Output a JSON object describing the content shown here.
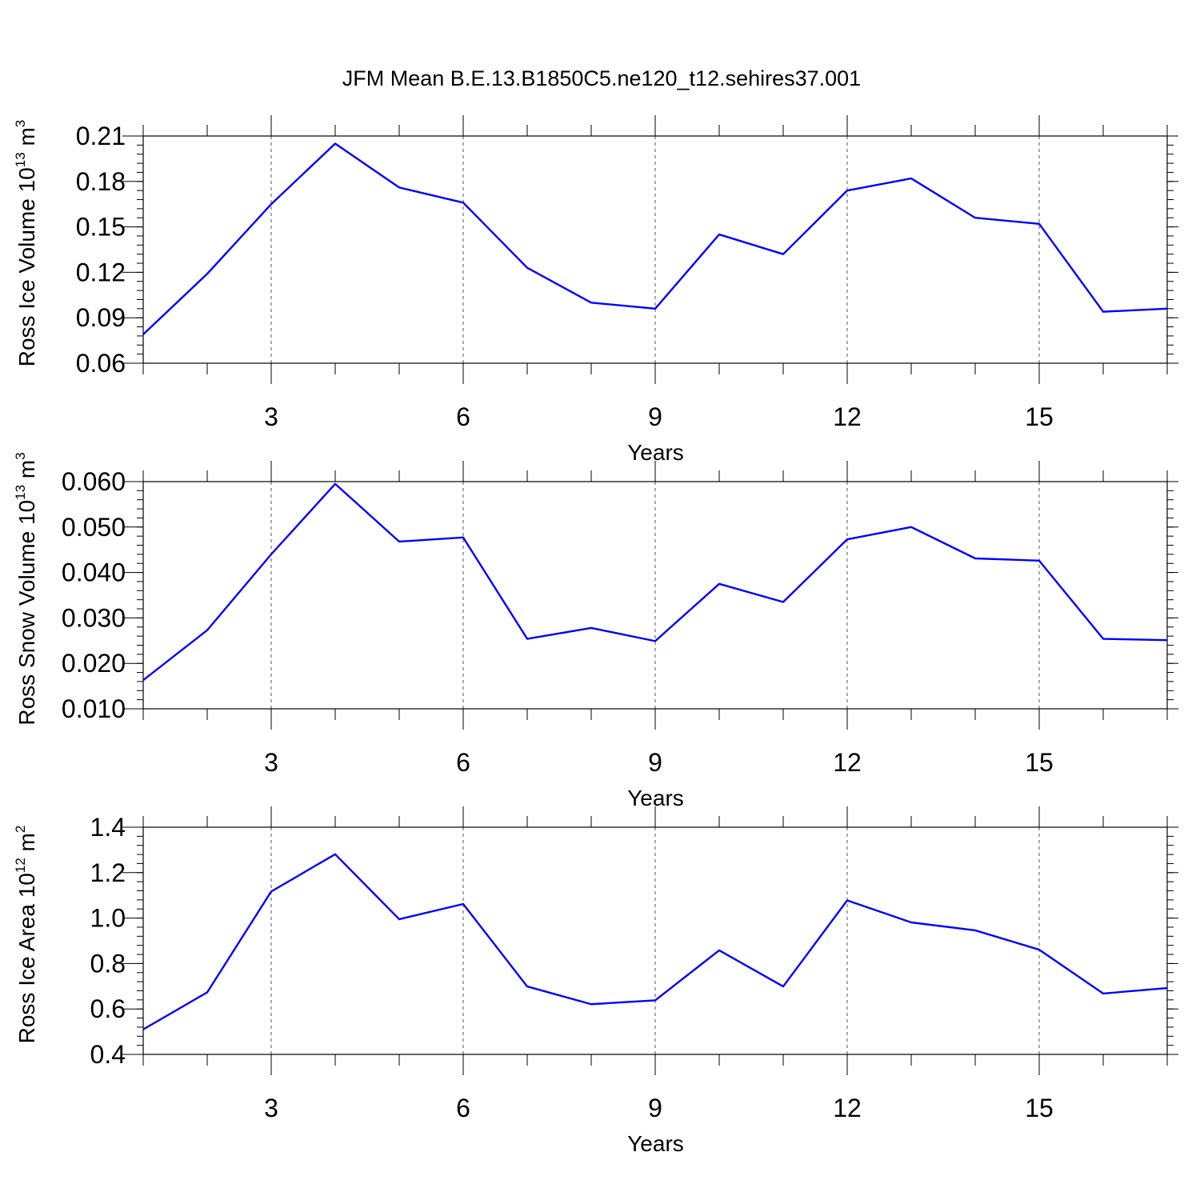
{
  "figure": {
    "title": "JFM Mean B.E.13.B1850C5.ne120_t12.sehires37.001"
  },
  "colors": {
    "line": "#0000ff",
    "axes": "#000000",
    "grid": "#555555",
    "background": "#ffffff"
  },
  "chart_data": [
    {
      "type": "line",
      "ylabel_main": "Ross Ice Volume 10",
      "ylabel_exp": "13",
      "ylabel_unit": " m",
      "ylabel_unit_exp": "3",
      "xlabel": "Years",
      "xlim": [
        1,
        17
      ],
      "ylim": [
        0.06,
        0.21
      ],
      "xticks": [
        3,
        6,
        9,
        12,
        15
      ],
      "xtick_labels": [
        "3",
        "6",
        "9",
        "12",
        "15"
      ],
      "yticks": [
        0.06,
        0.09,
        0.12,
        0.15,
        0.18,
        0.21
      ],
      "ytick_labels": [
        "0.06",
        "0.09",
        "0.12",
        "0.15",
        "0.18",
        "0.21"
      ],
      "y_minor_step": 0.006,
      "grid": "vertical dashed at major x ticks",
      "series": [
        {
          "name": "Ross Ice Volume",
          "x": [
            1,
            2,
            3,
            4,
            5,
            6,
            7,
            8,
            9,
            10,
            11,
            12,
            13,
            14,
            15,
            16,
            17
          ],
          "values": [
            0.079,
            0.119,
            0.165,
            0.205,
            0.176,
            0.166,
            0.123,
            0.1,
            0.096,
            0.145,
            0.132,
            0.174,
            0.182,
            0.156,
            0.152,
            0.094,
            0.096
          ]
        }
      ]
    },
    {
      "type": "line",
      "ylabel_main": "Ross Snow Volume 10",
      "ylabel_exp": "13",
      "ylabel_unit": " m",
      "ylabel_unit_exp": "3",
      "xlabel": "Years",
      "xlim": [
        1,
        17
      ],
      "ylim": [
        0.01,
        0.06
      ],
      "xticks": [
        3,
        6,
        9,
        12,
        15
      ],
      "xtick_labels": [
        "3",
        "6",
        "9",
        "12",
        "15"
      ],
      "yticks": [
        0.01,
        0.02,
        0.03,
        0.04,
        0.05,
        0.06
      ],
      "ytick_labels": [
        "0.010",
        "0.020",
        "0.030",
        "0.040",
        "0.050",
        "0.060"
      ],
      "y_minor_step": 0.002,
      "grid": "vertical dashed at major x ticks",
      "series": [
        {
          "name": "Ross Snow Volume",
          "x": [
            1,
            2,
            3,
            4,
            5,
            6,
            7,
            8,
            9,
            10,
            11,
            12,
            13,
            14,
            15,
            16,
            17
          ],
          "values": [
            0.0163,
            0.0273,
            0.044,
            0.0595,
            0.0468,
            0.0477,
            0.0254,
            0.0278,
            0.0249,
            0.0375,
            0.0335,
            0.0473,
            0.05,
            0.0431,
            0.0426,
            0.0254,
            0.0251
          ]
        }
      ]
    },
    {
      "type": "line",
      "ylabel_main": "Ross Ice Area 10",
      "ylabel_exp": "12",
      "ylabel_unit": " m",
      "ylabel_unit_exp": "2",
      "xlabel": "Years",
      "xlim": [
        1,
        17
      ],
      "ylim": [
        0.4,
        1.4
      ],
      "xticks": [
        3,
        6,
        9,
        12,
        15
      ],
      "xtick_labels": [
        "3",
        "6",
        "9",
        "12",
        "15"
      ],
      "yticks": [
        0.4,
        0.6,
        0.8,
        1.0,
        1.2,
        1.4
      ],
      "ytick_labels": [
        "0.4",
        "0.6",
        "0.8",
        "1.0",
        "1.2",
        "1.4"
      ],
      "y_minor_step": 0.04,
      "grid": "vertical dashed at major x ticks",
      "series": [
        {
          "name": "Ross Ice Area",
          "x": [
            1,
            2,
            3,
            4,
            5,
            6,
            7,
            8,
            9,
            10,
            11,
            12,
            13,
            14,
            15,
            16,
            17
          ],
          "values": [
            0.51,
            0.673,
            1.117,
            1.281,
            0.995,
            1.062,
            0.699,
            0.621,
            0.638,
            0.858,
            0.699,
            1.078,
            0.981,
            0.946,
            0.861,
            0.668,
            0.692
          ]
        }
      ]
    }
  ]
}
